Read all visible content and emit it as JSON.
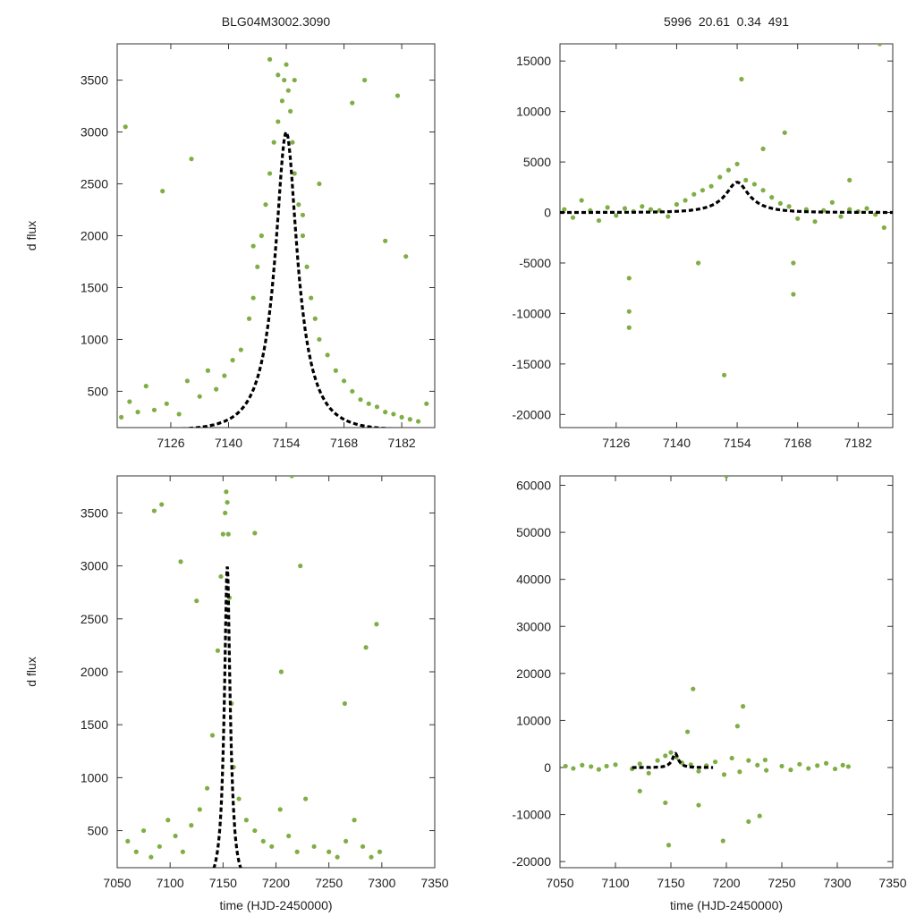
{
  "chart_data": [
    {
      "type": "scatter",
      "panel": "top-left",
      "title": "BLG04M3002.3090",
      "xlabel": "",
      "ylabel": "d flux",
      "xlim": [
        7113,
        7190
      ],
      "ylim": [
        150,
        3850
      ],
      "xticks": [
        7126,
        7140,
        7154,
        7168,
        7182
      ],
      "yticks": [
        500,
        1000,
        1500,
        2000,
        2500,
        3000,
        3500
      ],
      "point_color": "#7fae45",
      "model_color": "#000000",
      "model": {
        "t0": 7154,
        "peak": 3000,
        "tE": 8,
        "baseline": 120
      },
      "series": [
        {
          "name": "data",
          "x": [
            7114,
            7116,
            7118,
            7120,
            7122,
            7125,
            7128,
            7130,
            7133,
            7135,
            7137,
            7139,
            7141,
            7143,
            7145,
            7146,
            7147,
            7148,
            7149,
            7150,
            7151,
            7152,
            7153,
            7153.5,
            7154,
            7154.5,
            7155,
            7155.5,
            7156,
            7157,
            7158,
            7159,
            7160,
            7161,
            7162,
            7164,
            7166,
            7168,
            7170,
            7172,
            7174,
            7176,
            7178,
            7180,
            7182,
            7184,
            7186,
            7188,
            7115,
            7124,
            7131,
            7146,
            7150,
            7152,
            7156,
            7158,
            7162,
            7170,
            7173,
            7178,
            7181,
            7183
          ],
          "y": [
            250,
            400,
            300,
            550,
            320,
            380,
            280,
            600,
            450,
            700,
            520,
            650,
            800,
            900,
            1200,
            1400,
            1700,
            2000,
            2300,
            2600,
            2900,
            3100,
            3300,
            3500,
            3650,
            3400,
            3200,
            2900,
            2600,
            2300,
            2000,
            1700,
            1400,
            1200,
            1000,
            850,
            700,
            600,
            500,
            420,
            380,
            350,
            300,
            280,
            250,
            230,
            210,
            380,
            3050,
            2430,
            2740,
            1900,
            3700,
            3550,
            3500,
            2200,
            2500,
            3280,
            3500,
            1950,
            3350,
            1800
          ]
        }
      ]
    },
    {
      "type": "scatter",
      "panel": "top-right",
      "title": "5996  20.61  0.34  491",
      "xlabel": "",
      "ylabel": "",
      "xlim": [
        7113,
        7190
      ],
      "ylim": [
        -21300,
        16700
      ],
      "xticks": [
        7126,
        7140,
        7154,
        7168,
        7182
      ],
      "yticks": [
        15000,
        10000,
        5000,
        0,
        -5000,
        -10000,
        -15000,
        -20000
      ],
      "point_color": "#7fae45",
      "model_color": "#000000",
      "model": {
        "t0": 7154,
        "peak": 3000,
        "tE": 8,
        "baseline": 0
      },
      "series": [
        {
          "name": "data",
          "x": [
            7114,
            7116,
            7118,
            7120,
            7122,
            7124,
            7126,
            7128,
            7130,
            7132,
            7134,
            7136,
            7138,
            7140,
            7142,
            7144,
            7146,
            7148,
            7150,
            7152,
            7154,
            7156,
            7158,
            7160,
            7162,
            7164,
            7166,
            7168,
            7170,
            7172,
            7174,
            7176,
            7178,
            7180,
            7182,
            7184,
            7186,
            7188,
            7129,
            7129,
            7129,
            7145,
            7151,
            7155,
            7165,
            7167,
            7167,
            7180,
            7187,
            7160
          ],
          "y": [
            300,
            -500,
            1200,
            200,
            -800,
            500,
            -300,
            400,
            100,
            600,
            300,
            200,
            -400,
            800,
            1200,
            1800,
            2200,
            2600,
            3500,
            4200,
            4800,
            3200,
            2800,
            2200,
            1500,
            900,
            600,
            -600,
            300,
            -900,
            200,
            1000,
            -400,
            300,
            100,
            400,
            -200,
            -1500,
            -6500,
            -9800,
            -11400,
            -5000,
            -16100,
            13200,
            7900,
            -5000,
            -8100,
            3200,
            16700,
            6300
          ]
        }
      ]
    },
    {
      "type": "scatter",
      "panel": "bottom-left",
      "title": "",
      "xlabel": "time (HJD-2450000)",
      "ylabel": "d flux",
      "xlim": [
        7050,
        7350
      ],
      "ylim": [
        150,
        3850
      ],
      "xticks": [
        7050,
        7100,
        7150,
        7200,
        7250,
        7300,
        7350
      ],
      "yticks": [
        500,
        1000,
        1500,
        2000,
        2500,
        3000,
        3500
      ],
      "point_color": "#7fae45",
      "model_color": "#000000",
      "model": {
        "t0": 7154,
        "peak": 3000,
        "tE": 8,
        "baseline": 0,
        "xrange": [
          7100,
          7200
        ]
      },
      "series": [
        {
          "name": "data",
          "x": [
            7060,
            7068,
            7075,
            7082,
            7090,
            7098,
            7105,
            7112,
            7120,
            7128,
            7135,
            7140,
            7145,
            7148,
            7150,
            7152,
            7153,
            7154,
            7155,
            7156,
            7158,
            7160,
            7165,
            7172,
            7180,
            7188,
            7196,
            7204,
            7212,
            7220,
            7228,
            7236,
            7250,
            7258,
            7266,
            7274,
            7282,
            7290,
            7298,
            7085,
            7092,
            7110,
            7125,
            7180,
            7205,
            7215,
            7223,
            7265,
            7285,
            7295
          ],
          "y": [
            400,
            300,
            500,
            250,
            350,
            600,
            450,
            300,
            550,
            700,
            900,
            1400,
            2200,
            2900,
            3300,
            3500,
            3700,
            3600,
            3300,
            2700,
            1700,
            1100,
            800,
            600,
            500,
            400,
            350,
            700,
            450,
            300,
            800,
            350,
            300,
            250,
            400,
            600,
            350,
            250,
            300,
            3520,
            3580,
            3040,
            2670,
            3310,
            2000,
            3850,
            3000,
            1700,
            2230,
            2450
          ]
        }
      ]
    },
    {
      "type": "scatter",
      "panel": "bottom-right",
      "title": "",
      "xlabel": "time (HJD-2450000)",
      "ylabel": "",
      "xlim": [
        7050,
        7350
      ],
      "ylim": [
        -21300,
        62000
      ],
      "xticks": [
        7050,
        7100,
        7150,
        7200,
        7250,
        7300,
        7350
      ],
      "yticks": [
        60000,
        50000,
        40000,
        30000,
        20000,
        10000,
        0,
        -10000,
        -20000
      ],
      "point_color": "#7fae45",
      "model_color": "#000000",
      "model": {
        "t0": 7154,
        "peak": 3000,
        "tE": 8,
        "baseline": 0,
        "xrange": [
          7115,
          7188
        ]
      },
      "series": [
        {
          "name": "data",
          "x": [
            7055,
            7062,
            7070,
            7078,
            7085,
            7092,
            7100,
            7115,
            7122,
            7130,
            7138,
            7145,
            7150,
            7155,
            7160,
            7168,
            7175,
            7182,
            7190,
            7198,
            7205,
            7212,
            7220,
            7228,
            7236,
            7250,
            7258,
            7266,
            7274,
            7282,
            7290,
            7298,
            7305,
            7310,
            7200,
            7122,
            7148,
            7170,
            7197,
            7215,
            7220,
            7230,
            7210,
            7235,
            7175,
            7145,
            7165
          ],
          "y": [
            300,
            -200,
            500,
            200,
            -400,
            300,
            600,
            -300,
            800,
            -1200,
            1500,
            2500,
            3200,
            2200,
            1000,
            600,
            -800,
            400,
            1200,
            -1500,
            2000,
            -900,
            1500,
            500,
            -600,
            300,
            -500,
            700,
            -200,
            400,
            900,
            -300,
            500,
            200,
            62000,
            -5000,
            -16500,
            16700,
            -15600,
            13000,
            -11500,
            -10300,
            8800,
            1600,
            -8000,
            -7500,
            7600
          ]
        }
      ]
    }
  ]
}
